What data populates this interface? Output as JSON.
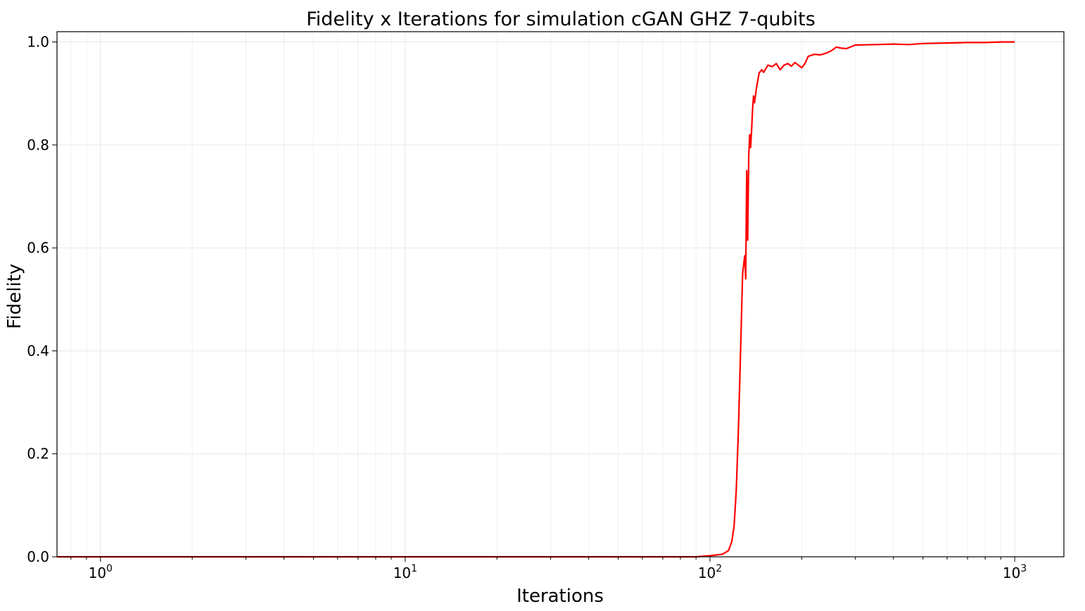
{
  "chart_data": {
    "type": "line",
    "title": "Fidelity x Iterations for simulation cGAN GHZ 7-qubits",
    "xlabel": "Iterations",
    "ylabel": "Fidelity",
    "xscale": "log",
    "xlim": [
      0.72,
      1450
    ],
    "ylim": [
      0.0,
      1.02
    ],
    "grid": "on (major and minor)",
    "x_ticks": [
      {
        "base": "10",
        "exp": "0",
        "value": 1
      },
      {
        "base": "10",
        "exp": "1",
        "value": 10
      },
      {
        "base": "10",
        "exp": "2",
        "value": 100
      },
      {
        "base": "10",
        "exp": "3",
        "value": 1000
      }
    ],
    "y_ticks": [
      "0.0",
      "0.2",
      "0.4",
      "0.6",
      "0.8",
      "1.0"
    ],
    "series": [
      {
        "color": "#ff0000",
        "x": [
          0.72,
          1,
          10,
          50,
          90,
          100,
          110,
          115,
          118,
          120,
          122,
          124,
          126,
          128,
          130,
          131,
          132,
          133,
          134,
          135,
          136,
          137,
          138,
          139,
          140,
          142,
          145,
          148,
          150,
          155,
          160,
          165,
          170,
          175,
          180,
          185,
          190,
          195,
          200,
          205,
          210,
          220,
          230,
          240,
          250,
          260,
          270,
          280,
          300,
          350,
          400,
          450,
          500,
          600,
          700,
          800,
          900,
          1000
        ],
        "y": [
          0.0,
          0.0,
          0.0,
          0.0,
          0.0,
          0.002,
          0.005,
          0.012,
          0.03,
          0.06,
          0.13,
          0.25,
          0.4,
          0.55,
          0.585,
          0.54,
          0.75,
          0.615,
          0.78,
          0.82,
          0.795,
          0.83,
          0.87,
          0.895,
          0.882,
          0.91,
          0.94,
          0.946,
          0.941,
          0.955,
          0.952,
          0.958,
          0.946,
          0.955,
          0.958,
          0.953,
          0.96,
          0.955,
          0.95,
          0.958,
          0.972,
          0.976,
          0.975,
          0.978,
          0.983,
          0.99,
          0.988,
          0.987,
          0.994,
          0.995,
          0.996,
          0.995,
          0.997,
          0.998,
          0.999,
          0.999,
          1.0,
          1.0
        ]
      }
    ]
  }
}
